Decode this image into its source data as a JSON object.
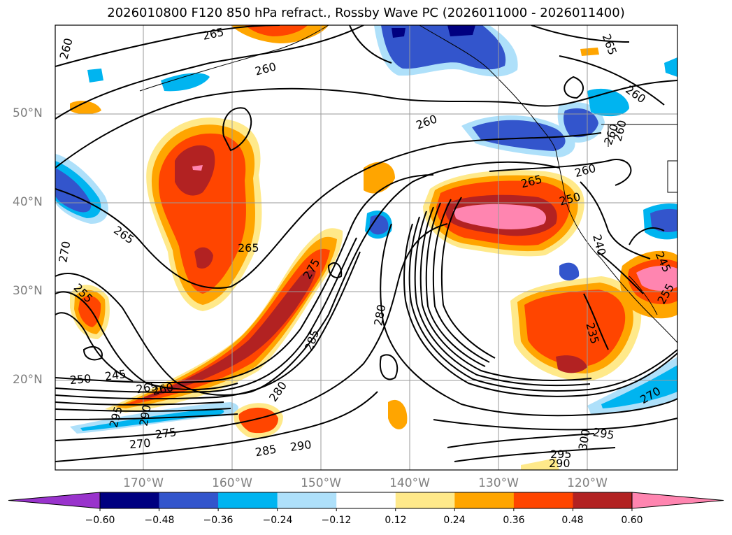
{
  "title": "2026010800 F120 850 hPa refract., Rossby Wave PC (2026011000 - 2026011400)",
  "lat_labels": [
    "50°N",
    "40°N",
    "30°N",
    "20°N"
  ],
  "lon_labels": [
    "170°W",
    "160°W",
    "150°W",
    "140°W",
    "130°W",
    "120°W"
  ],
  "contour_labels": [
    "260",
    "265",
    "260",
    "260",
    "265",
    "260",
    "265",
    "260",
    "250",
    "270",
    "265",
    "260",
    "240",
    "255",
    "245",
    "235",
    "275",
    "250",
    "245",
    "265",
    "260",
    "285",
    "280",
    "280",
    "295",
    "290",
    "275",
    "270",
    "285",
    "290",
    "295",
    "290",
    "300",
    "295",
    "270",
    "265",
    "260",
    "255",
    "265"
  ],
  "colorbar": {
    "ticks": [
      "−0.60",
      "−0.48",
      "−0.36",
      "−0.24",
      "−0.12",
      "0.12",
      "0.24",
      "0.36",
      "0.48",
      "0.60"
    ],
    "colors": [
      "#9933cc",
      "#000080",
      "#3355cc",
      "#00b4f0",
      "#aee0fa",
      "#ffffff",
      "#ffe98a",
      "#ffa500",
      "#ff4500",
      "#b22222",
      "#ff85b0"
    ]
  },
  "colors": {
    "neg_purple": "#9933cc",
    "neg_navy": "#000080",
    "neg_blue": "#3355cc",
    "neg_cyan": "#00b4f0",
    "neg_light": "#aee0fa",
    "pos_yellow": "#ffe98a",
    "pos_orange": "#ffa500",
    "pos_red": "#ff4500",
    "pos_darkred": "#b22222",
    "pos_pink": "#ff85b0"
  }
}
